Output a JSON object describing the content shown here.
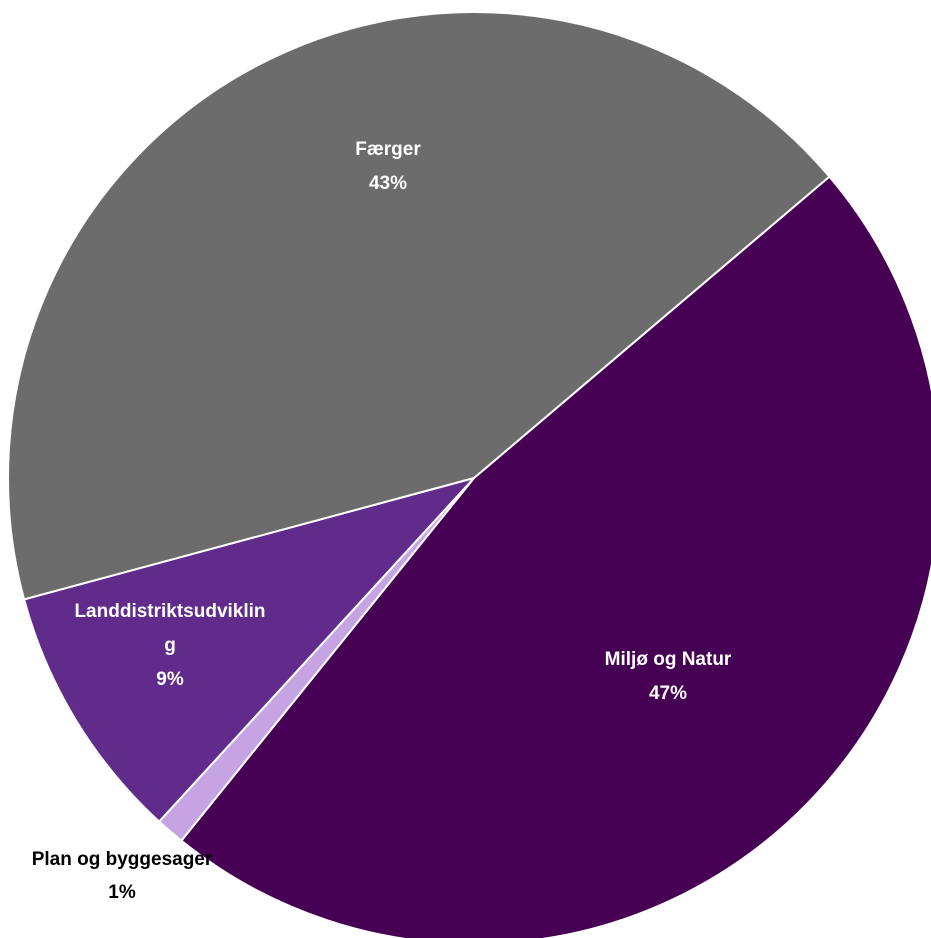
{
  "chart_data": {
    "type": "pie",
    "slices": [
      {
        "label": "Miljø og Natur",
        "value_label": "47%",
        "value": 47,
        "color": "#460154"
      },
      {
        "label": "Plan og byggesager",
        "value_label": "1%",
        "value": 1,
        "color": "#C6A3E2"
      },
      {
        "label": "Landdistriktsudviklin",
        "label_line2": "g",
        "value_label": "9%",
        "value": 9,
        "color": "#612B8B"
      },
      {
        "label": "Færger",
        "value_label": "43%",
        "value": 43,
        "color": "#6C6C6C"
      }
    ],
    "label_colors": {
      "inside": "#ffffff",
      "outside": "#000000"
    }
  }
}
